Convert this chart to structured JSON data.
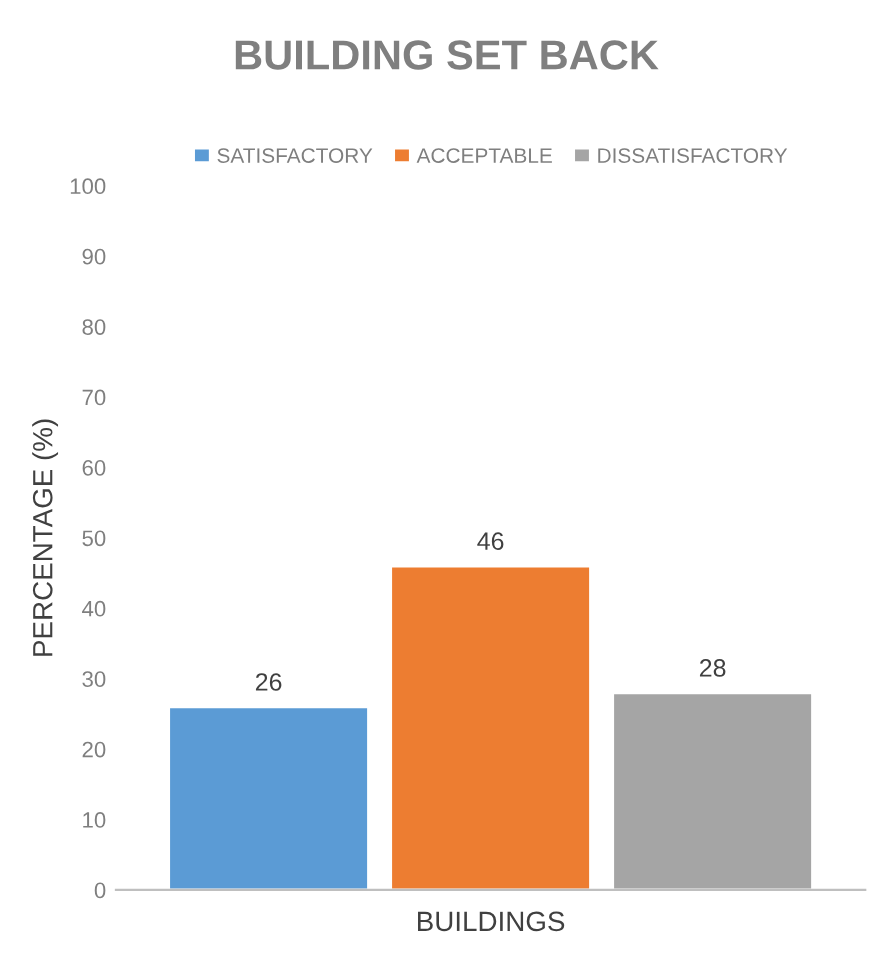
{
  "chart_data": {
    "type": "bar",
    "title": "BUILDING SET BACK",
    "xlabel": "BUILDINGS",
    "ylabel": "PERCENTAGE (%)",
    "categories": [
      null
    ],
    "series": [
      {
        "name": "SATISFACTORY",
        "color": "#5b9bd5",
        "values": [
          26
        ]
      },
      {
        "name": "ACCEPTABLE",
        "color": "#ed7d31",
        "values": [
          46
        ]
      },
      {
        "name": "DISSATISFACTORY",
        "color": "#a5a5a5",
        "values": [
          28
        ]
      }
    ],
    "ylim": [
      0,
      100
    ],
    "yticks": [
      0,
      10,
      20,
      30,
      40,
      50,
      60,
      70,
      80,
      90,
      100
    ],
    "data_labels": true,
    "grid": false,
    "legend": "top"
  }
}
